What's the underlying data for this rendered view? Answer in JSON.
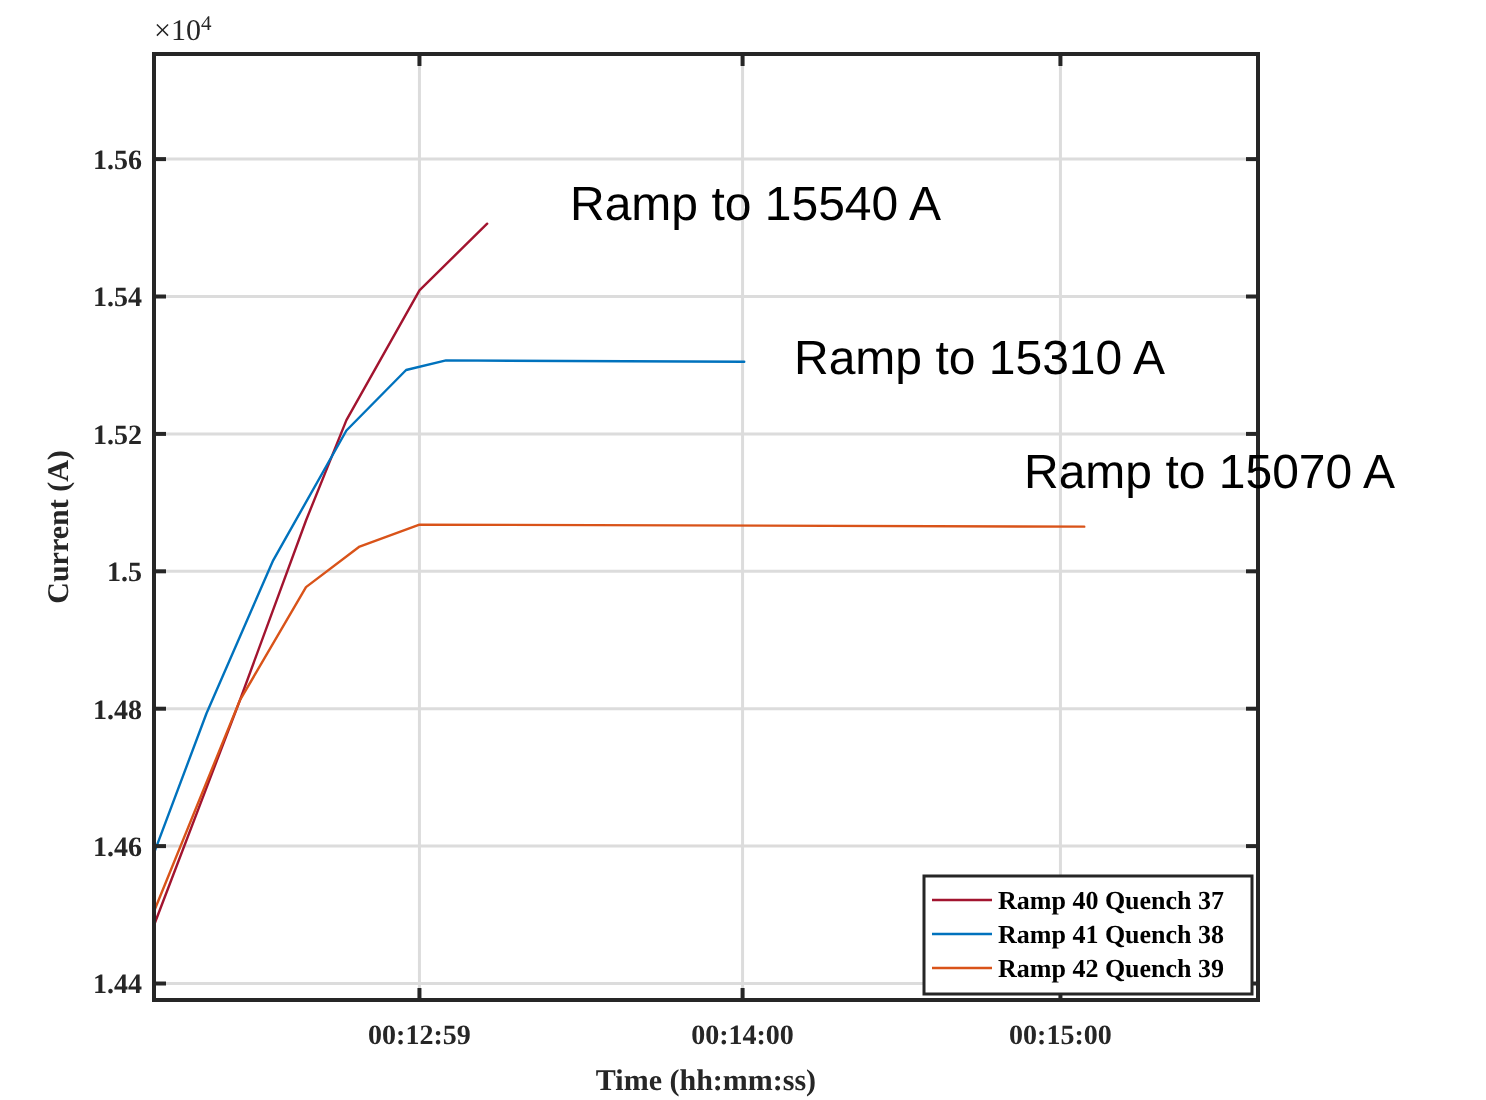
{
  "chart_data": {
    "type": "line",
    "xlabel": "Time (hh:mm:ss)",
    "ylabel": "Current (A)",
    "xlim": [
      0.20247,
      0.26036
    ],
    "xticks": [
      {
        "value": 0.216389,
        "label": "00:12:59"
      },
      {
        "value": 0.233333,
        "label": "00:14:00"
      },
      {
        "value": 0.25,
        "label": "00:15:00"
      }
    ],
    "ylim": [
      1.4376,
      1.5753
    ],
    "yticks": [
      1.44,
      1.46,
      1.48,
      1.5,
      1.52,
      1.54,
      1.56
    ],
    "grid": true,
    "legend": "bottom right",
    "line_style": "solid",
    "marker": "none",
    "series": [
      {
        "name": "Ramp 40 Quench 37",
        "color": "#a2142f",
        "x": [
          0.2025,
          0.20697,
          0.21044,
          0.21256,
          0.21639,
          0.21994
        ],
        "values": [
          1.4487,
          1.4812,
          1.5074,
          1.522,
          1.5409,
          1.5506
        ]
      },
      {
        "name": "Ramp 41 Quench 38",
        "color": "#0072bd",
        "x": [
          0.2025,
          0.20522,
          0.20872,
          0.21256,
          0.21569,
          0.21778,
          0.23342
        ],
        "values": [
          1.4592,
          1.4793,
          1.5016,
          1.5205,
          1.5293,
          1.5307,
          1.5305
        ]
      },
      {
        "name": "Ramp 42 Quench 39",
        "color": "#d95319",
        "x": [
          0.2025,
          0.20697,
          0.21044,
          0.21325,
          0.21639,
          0.25125
        ],
        "values": [
          1.4507,
          1.4812,
          1.4977,
          1.5036,
          1.5068,
          1.5065
        ]
      }
    ],
    "annotations": [
      "×10$^{4}$",
      "Ramp to 15540 A",
      "Ramp to 15310 A",
      "Ramp to 15070 A"
    ]
  }
}
